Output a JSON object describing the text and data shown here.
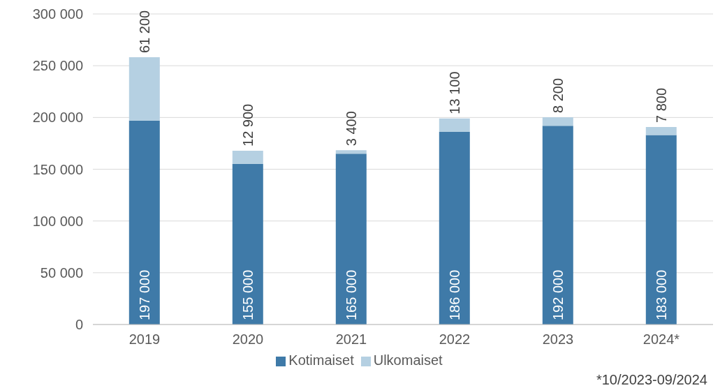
{
  "chart_data": {
    "type": "bar",
    "stacked": true,
    "categories": [
      "2019",
      "2020",
      "2021",
      "2022",
      "2023",
      "2024*"
    ],
    "series": [
      {
        "name": "Kotimaiset",
        "color": "#3f7aa8",
        "values": [
          197000,
          155000,
          165000,
          186000,
          192000,
          183000
        ],
        "value_labels": [
          "197 000",
          "155 000",
          "165 000",
          "186 000",
          "192 000",
          "183 000"
        ]
      },
      {
        "name": "Ulkomaiset",
        "color": "#b5d0e2",
        "values": [
          61200,
          12900,
          3400,
          13100,
          8200,
          7800
        ],
        "value_labels": [
          "61 200",
          "12 900",
          "3 400",
          "13 100",
          "8 200",
          "7 800"
        ]
      }
    ],
    "ylim": [
      0,
      300000
    ],
    "yticks": [
      {
        "value": 0,
        "label": "0"
      },
      {
        "value": 50000,
        "label": "50 000"
      },
      {
        "value": 100000,
        "label": "100 000"
      },
      {
        "value": 150000,
        "label": "150 000"
      },
      {
        "value": 200000,
        "label": "200 000"
      },
      {
        "value": 250000,
        "label": "250 000"
      },
      {
        "value": 300000,
        "label": "300 000"
      }
    ],
    "grid": "y",
    "legend": "bottom",
    "annotations": [
      "*10/2023-09/2024"
    ]
  }
}
